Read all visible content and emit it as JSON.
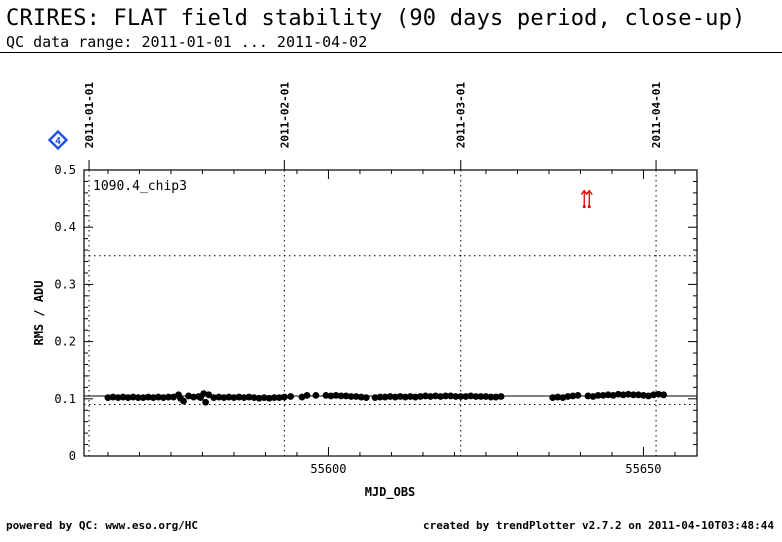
{
  "header": {
    "title": "CRIRES: FLAT field stability (90 days period, close-up)",
    "subtitle": "QC data range: 2011-01-01 ... 2011-04-02"
  },
  "footer": {
    "left": "powered by QC: www.eso.org/HC",
    "right": "created by trendPlotter v2.7.2 on 2011-04-10T03:48:44"
  },
  "badge": {
    "label": "4",
    "color": "#1f4fe0"
  },
  "chart_data": {
    "type": "scatter",
    "xlabel": "MJD_OBS",
    "ylabel": "RMS / ADU",
    "panel_label": "1090.4_chip3",
    "xlim": [
      55561.2,
      55658.5
    ],
    "ylim": [
      0,
      0.5
    ],
    "x_ticks": [
      55600,
      55650
    ],
    "x_minor_step": 5,
    "y_ticks": [
      0,
      0.1,
      0.2,
      0.3,
      0.4,
      0.5
    ],
    "y_minor_step": 0.02,
    "date_markers": [
      {
        "label": "2011-01-01",
        "x": 55562
      },
      {
        "label": "2011-02-01",
        "x": 55593
      },
      {
        "label": "2011-03-01",
        "x": 55621
      },
      {
        "label": "2011-04-01",
        "x": 55652
      }
    ],
    "reference_lines": {
      "mean": 0.105,
      "lower_limit": 0.09,
      "upper_limit": 0.35
    },
    "outlier_marker": {
      "x": 55641,
      "y": 0.45,
      "color": "#e00000"
    },
    "series": [
      {
        "color": "#000000",
        "x": [
          55565.0,
          55565.8,
          55566.6,
          55567.4,
          55568.2,
          55569.0,
          55569.8,
          55570.6,
          55571.4,
          55572.2,
          55573.0,
          55573.8,
          55574.6,
          55575.4,
          55576.2,
          55576.5,
          55577.0,
          55577.8,
          55578.6,
          55579.4,
          55579.7,
          55580.2,
          55580.5,
          55581.0,
          55581.8,
          55582.6,
          55583.4,
          55584.2,
          55585.0,
          55585.8,
          55586.6,
          55587.4,
          55588.2,
          55589.0,
          55589.8,
          55590.6,
          55591.4,
          55592.2,
          55593.0,
          55594.0,
          55595.8,
          55596.6,
          55598.0,
          55599.6,
          55600.4,
          55601.2,
          55602.0,
          55602.8,
          55603.6,
          55604.4,
          55605.2,
          55606.0,
          55607.4,
          55608.2,
          55609.0,
          55609.8,
          55610.6,
          55611.4,
          55612.2,
          55613.0,
          55613.8,
          55614.6,
          55615.4,
          55616.2,
          55617.0,
          55617.8,
          55618.6,
          55619.4,
          55620.2,
          55621.0,
          55621.8,
          55622.6,
          55623.4,
          55624.2,
          55625.0,
          55625.8,
          55626.6,
          55627.4,
          55635.6,
          55636.4,
          55637.2,
          55638.0,
          55638.8,
          55639.6,
          55641.2,
          55642.0,
          55642.8,
          55643.6,
          55644.4,
          55645.2,
          55646.0,
          55646.8,
          55647.6,
          55648.4,
          55649.2,
          55650.0,
          55650.8,
          55651.6,
          55652.4,
          55653.2
        ],
        "y": [
          0.102,
          0.103,
          0.102,
          0.103,
          0.102,
          0.103,
          0.102,
          0.102,
          0.103,
          0.102,
          0.103,
          0.102,
          0.103,
          0.103,
          0.107,
          0.101,
          0.096,
          0.105,
          0.103,
          0.104,
          0.102,
          0.109,
          0.094,
          0.107,
          0.102,
          0.103,
          0.102,
          0.103,
          0.102,
          0.103,
          0.102,
          0.103,
          0.102,
          0.101,
          0.102,
          0.101,
          0.102,
          0.102,
          0.103,
          0.104,
          0.103,
          0.106,
          0.106,
          0.106,
          0.105,
          0.106,
          0.105,
          0.105,
          0.104,
          0.104,
          0.103,
          0.102,
          0.102,
          0.103,
          0.103,
          0.104,
          0.103,
          0.104,
          0.103,
          0.104,
          0.103,
          0.104,
          0.105,
          0.104,
          0.105,
          0.104,
          0.105,
          0.105,
          0.104,
          0.104,
          0.104,
          0.105,
          0.104,
          0.104,
          0.104,
          0.103,
          0.103,
          0.104,
          0.102,
          0.103,
          0.102,
          0.104,
          0.105,
          0.106,
          0.105,
          0.104,
          0.106,
          0.106,
          0.107,
          0.106,
          0.108,
          0.107,
          0.108,
          0.107,
          0.107,
          0.106,
          0.105,
          0.107,
          0.108,
          0.107
        ]
      }
    ]
  }
}
